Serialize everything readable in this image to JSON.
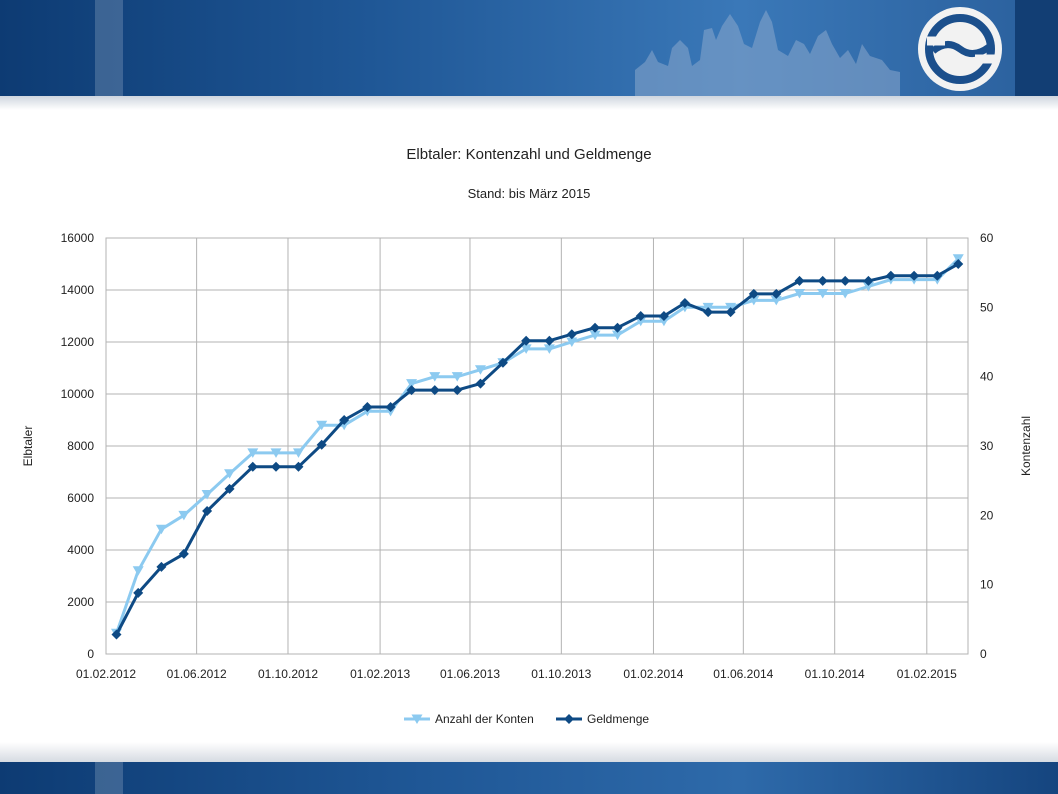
{
  "chart_data": {
    "type": "line",
    "title": "Elbtaler: Kontenzahl und Geldmenge",
    "subtitle": "Stand: bis März 2015",
    "ylabel": "Elbtaler",
    "y2label": "Kontenzahl",
    "ylim": [
      0,
      16000
    ],
    "y2lim": [
      0,
      60
    ],
    "y_ticks": [
      "0",
      "2000",
      "4000",
      "6000",
      "8000",
      "10000",
      "12000",
      "14000",
      "16000"
    ],
    "y2_ticks": [
      "0",
      "10",
      "20",
      "30",
      "40",
      "50",
      "60"
    ],
    "x_ticks": [
      "01.02.2012",
      "01.06.2012",
      "01.10.2012",
      "01.02.2013",
      "01.06.2013",
      "01.10.2013",
      "01.02.2014",
      "01.06.2014",
      "01.10.2014",
      "01.02.2015"
    ],
    "grid": true,
    "legend_position": "bottom",
    "x": [
      "2012-02-15",
      "2012-03-15",
      "2012-04-15",
      "2012-05-15",
      "2012-06-15",
      "2012-07-15",
      "2012-08-15",
      "2012-09-15",
      "2012-10-15",
      "2012-11-15",
      "2012-12-15",
      "2013-01-15",
      "2013-02-15",
      "2013-03-15",
      "2013-04-15",
      "2013-05-15",
      "2013-06-15",
      "2013-07-15",
      "2013-08-15",
      "2013-09-15",
      "2013-10-15",
      "2013-11-15",
      "2013-12-15",
      "2014-01-15",
      "2014-02-15",
      "2014-03-15",
      "2014-04-15",
      "2014-05-15",
      "2014-06-15",
      "2014-07-15",
      "2014-08-15",
      "2014-09-15",
      "2014-10-15",
      "2014-11-15",
      "2014-12-15",
      "2015-01-15",
      "2015-02-15",
      "2015-03-15"
    ],
    "series": [
      {
        "name": "Anzahl der Konten",
        "axis": "right",
        "color": "#8ccaf0",
        "marker": "triangle-down",
        "values": [
          3,
          12,
          18,
          20,
          23,
          26,
          29,
          29,
          29,
          33,
          33,
          35,
          35,
          39,
          40,
          40,
          41,
          42,
          44,
          44,
          45,
          46,
          46,
          48,
          48,
          50,
          50,
          50,
          51,
          51,
          52,
          52,
          52,
          53,
          54,
          54,
          54,
          57
        ]
      },
      {
        "name": "Geldmenge",
        "axis": "left",
        "color": "#0e4a84",
        "marker": "diamond",
        "values": [
          750,
          2350,
          3350,
          3850,
          5500,
          6350,
          7200,
          7200,
          7200,
          8050,
          9000,
          9500,
          9500,
          10150,
          10150,
          10150,
          10400,
          11200,
          12050,
          12050,
          12300,
          12550,
          12550,
          13000,
          13000,
          13500,
          13150,
          13150,
          13850,
          13850,
          14350,
          14350,
          14350,
          14350,
          14550,
          14550,
          14550,
          15000
        ]
      }
    ]
  }
}
